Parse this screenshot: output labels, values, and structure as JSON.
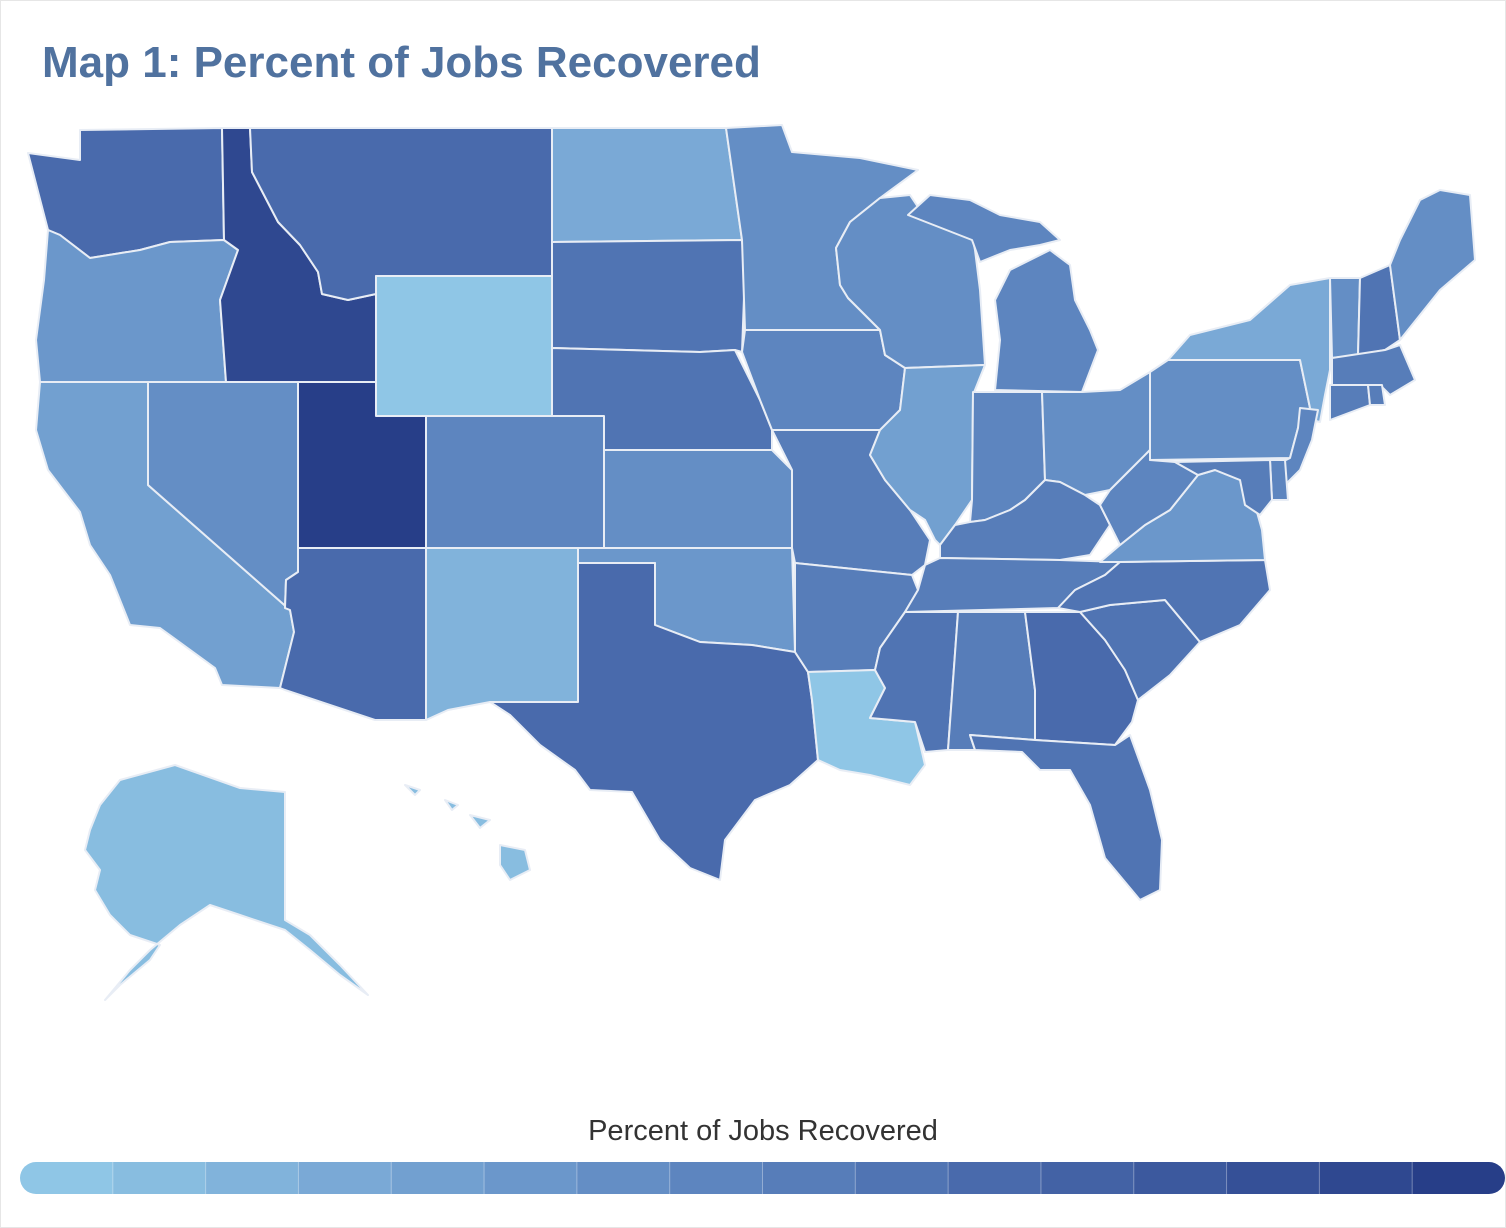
{
  "title": "Map 1: Percent of Jobs Recovered",
  "legend": {
    "title": "Percent of Jobs Recovered",
    "scale_colors": [
      "#8fc6e6",
      "#88bde0",
      "#81b3db",
      "#7aa9d6",
      "#72a0d0",
      "#6b97cb",
      "#648ec5",
      "#5d85bf",
      "#577db9",
      "#5074b3",
      "#496aac",
      "#4362a5",
      "#3c599e",
      "#355097",
      "#2f4890",
      "#273e88"
    ]
  },
  "colors": {
    "title": "#50729f",
    "state_border": "#e8edf5",
    "background": "#ffffff"
  },
  "map_data": {
    "type": "choropleth",
    "states": [
      {
        "id": "WA",
        "level": 11
      },
      {
        "id": "OR",
        "level": 6
      },
      {
        "id": "CA",
        "level": 5
      },
      {
        "id": "NV",
        "level": 7
      },
      {
        "id": "ID",
        "level": 15
      },
      {
        "id": "MT",
        "level": 11
      },
      {
        "id": "WY",
        "level": 1
      },
      {
        "id": "UT",
        "level": 16
      },
      {
        "id": "CO",
        "level": 8
      },
      {
        "id": "AZ",
        "level": 11
      },
      {
        "id": "NM",
        "level": 3
      },
      {
        "id": "ND",
        "level": 4
      },
      {
        "id": "SD",
        "level": 10
      },
      {
        "id": "NE",
        "level": 10
      },
      {
        "id": "KS",
        "level": 7
      },
      {
        "id": "OK",
        "level": 6
      },
      {
        "id": "TX",
        "level": 11
      },
      {
        "id": "MN",
        "level": 7
      },
      {
        "id": "IA",
        "level": 8
      },
      {
        "id": "MO",
        "level": 9
      },
      {
        "id": "AR",
        "level": 9
      },
      {
        "id": "LA",
        "level": 1
      },
      {
        "id": "WI",
        "level": 7
      },
      {
        "id": "IL",
        "level": 5
      },
      {
        "id": "MS",
        "level": 10
      },
      {
        "id": "MI",
        "level": 8
      },
      {
        "id": "IN",
        "level": 8
      },
      {
        "id": "OH",
        "level": 7
      },
      {
        "id": "KY",
        "level": 9
      },
      {
        "id": "TN",
        "level": 9
      },
      {
        "id": "AL",
        "level": 9
      },
      {
        "id": "GA",
        "level": 11
      },
      {
        "id": "FL",
        "level": 10
      },
      {
        "id": "SC",
        "level": 10
      },
      {
        "id": "NC",
        "level": 10
      },
      {
        "id": "VA",
        "level": 6
      },
      {
        "id": "WV",
        "level": 8
      },
      {
        "id": "PA",
        "level": 7
      },
      {
        "id": "NY",
        "level": 4
      },
      {
        "id": "VT",
        "level": 7
      },
      {
        "id": "NH",
        "level": 10
      },
      {
        "id": "ME",
        "level": 7
      },
      {
        "id": "MA",
        "level": 9
      },
      {
        "id": "CT",
        "level": 9
      },
      {
        "id": "RI",
        "level": 9
      },
      {
        "id": "NJ",
        "level": 8
      },
      {
        "id": "DE",
        "level": 8
      },
      {
        "id": "MD",
        "level": 9
      },
      {
        "id": "AK",
        "level": 2
      },
      {
        "id": "HI",
        "level": 2
      }
    ]
  }
}
